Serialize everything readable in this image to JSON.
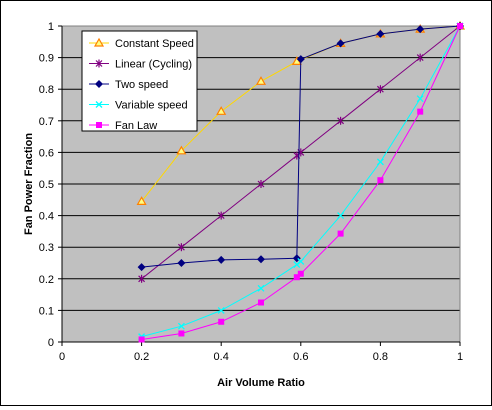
{
  "chart_data": {
    "type": "line",
    "title": "",
    "xlabel": "Air Volume Ratio",
    "ylabel": "Fan Power Fraction",
    "xlim": [
      0,
      1
    ],
    "ylim": [
      0,
      1
    ],
    "x_ticks": [
      "0",
      "0.2",
      "0.4",
      "0.6",
      "0.8",
      "1"
    ],
    "y_ticks": [
      "0",
      "0.1",
      "0.2",
      "0.3",
      "0.4",
      "0.5",
      "0.6",
      "0.7",
      "0.8",
      "0.9",
      "1"
    ],
    "x_tick_values": [
      0,
      0.2,
      0.4,
      0.6,
      0.8,
      1
    ],
    "y_tick_values": [
      0,
      0.1,
      0.2,
      0.3,
      0.4,
      0.5,
      0.6,
      0.7,
      0.8,
      0.9,
      1
    ],
    "grid": "horizontal",
    "plot_background": "#c0c0c0",
    "legend_position": "top-left",
    "series": [
      {
        "name": "Constant Speed",
        "color": "#ffd700",
        "marker": "triangle",
        "marker_color": "#ff8000",
        "x": [
          0.2,
          0.3,
          0.4,
          0.5,
          0.59,
          0.7,
          0.8,
          0.9,
          1
        ],
        "y": [
          0.445,
          0.605,
          0.73,
          0.825,
          0.888,
          0.945,
          0.975,
          0.99,
          1
        ]
      },
      {
        "name": "Linear (Cycling)",
        "color": "#800080",
        "marker": "star",
        "marker_color": "#800080",
        "x": [
          0.2,
          0.3,
          0.4,
          0.5,
          0.59,
          0.6,
          0.7,
          0.8,
          0.9,
          1
        ],
        "y": [
          0.2,
          0.3,
          0.4,
          0.5,
          0.59,
          0.6,
          0.7,
          0.8,
          0.9,
          1
        ]
      },
      {
        "name": "Two speed",
        "color": "#000080",
        "marker": "diamond",
        "marker_color": "#000080",
        "x": [
          0.2,
          0.3,
          0.4,
          0.5,
          0.59,
          0.6,
          0.7,
          0.8,
          0.9,
          1
        ],
        "y": [
          0.237,
          0.25,
          0.26,
          0.262,
          0.265,
          0.895,
          0.945,
          0.975,
          0.99,
          1
        ]
      },
      {
        "name": "Variable speed",
        "color": "#00ffff",
        "marker": "x",
        "marker_color": "#00ffff",
        "x": [
          0.2,
          0.3,
          0.4,
          0.5,
          0.59,
          0.6,
          0.7,
          0.8,
          0.9,
          1
        ],
        "y": [
          0.017,
          0.05,
          0.1,
          0.17,
          0.245,
          0.255,
          0.4,
          0.57,
          0.77,
          1
        ]
      },
      {
        "name": "Fan Law",
        "color": "#ff00ff",
        "marker": "square",
        "marker_color": "#ff00ff",
        "x": [
          0.2,
          0.3,
          0.4,
          0.5,
          0.59,
          0.6,
          0.7,
          0.8,
          0.9,
          1
        ],
        "y": [
          0.008,
          0.027,
          0.064,
          0.125,
          0.205,
          0.216,
          0.343,
          0.512,
          0.729,
          1
        ]
      }
    ]
  }
}
